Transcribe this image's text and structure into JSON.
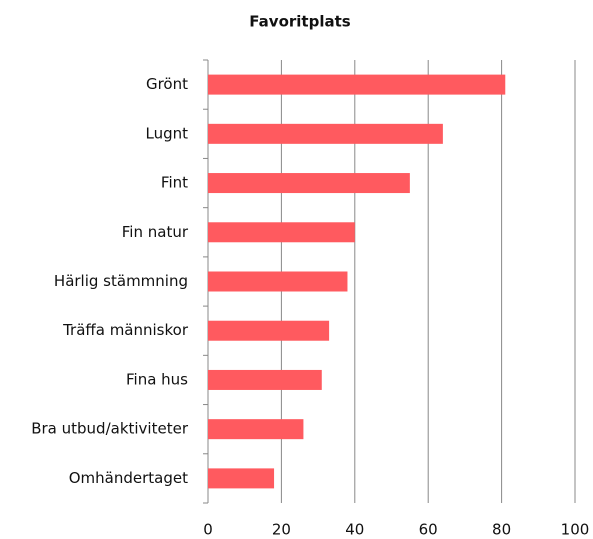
{
  "chart_data": {
    "type": "bar",
    "orientation": "horizontal",
    "title": "Favoritplats",
    "categories": [
      "Grönt",
      "Lugnt",
      "Fint",
      "Fin natur",
      "Härlig stämmning",
      "Träffa människor",
      "Fina hus",
      "Bra utbud/aktiviteter",
      "Omhändertaget"
    ],
    "values": [
      81,
      64,
      55,
      40,
      38,
      33,
      31,
      26,
      18
    ],
    "color": "#ff5a5f",
    "xlim": [
      0,
      100
    ],
    "xticks": [
      0,
      20,
      40,
      60,
      80,
      100
    ],
    "grid": true
  }
}
